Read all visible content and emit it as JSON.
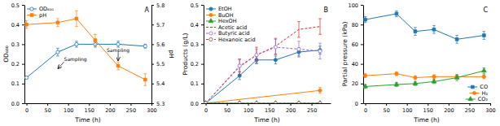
{
  "chart_data": [
    {
      "type": "line",
      "title": "A",
      "xlabel": "Time (h)",
      "ylabel": "OD₆₀₀",
      "y2label": "pH",
      "xlim": [
        -5,
        300
      ],
      "xticks": [
        0,
        50,
        100,
        150,
        200,
        250,
        300
      ],
      "ylim": [
        0.0,
        0.5
      ],
      "yticks": [
        {
          "value": 0,
          "label": "0.0"
        },
        0.1,
        0.2,
        0.3,
        0.4,
        0.5
      ],
      "y2lim": [
        5.3,
        5.8
      ],
      "y2ticks": [
        5.3,
        5.4,
        5.5,
        5.6,
        5.7,
        5.8
      ],
      "legend": "upper-left",
      "series": [
        {
          "name": "OD₆₀₀",
          "marker": "circle-open",
          "line_style": "solid",
          "x": [
            0,
            75,
            120,
            165,
            220,
            285
          ],
          "values": [
            0.13,
            0.26,
            0.3,
            0.3,
            0.3,
            0.29
          ],
          "errors": [
            0.005,
            0.02,
            0.015,
            0.015,
            0.015,
            0.01
          ]
        },
        {
          "name": "pH",
          "axis": "y2",
          "marker": "square",
          "line_style": "solid",
          "x": [
            0,
            75,
            120,
            165,
            220,
            285
          ],
          "values": [
            5.7,
            5.71,
            5.73,
            5.62,
            5.49,
            5.42
          ],
          "errors": [
            0.02,
            0.02,
            0.04,
            0.03,
            0.02,
            0.03
          ]
        }
      ],
      "annotations": [
        {
          "text": "Sampling",
          "x": 75,
          "y": 0.175,
          "text_x": 90,
          "text_y": 0.21
        },
        {
          "text": "Sampling",
          "x": 220,
          "y": 0.215,
          "text_x": 220,
          "text_y": 0.255
        }
      ]
    },
    {
      "type": "line",
      "title": "B",
      "xlabel": "Time (h)",
      "ylabel": "Products (g/L)",
      "xlim": [
        -5,
        295
      ],
      "xticks": [
        0,
        50,
        100,
        150,
        200,
        250
      ],
      "ylim": [
        0.0,
        0.5
      ],
      "yticks": [
        {
          "value": 0,
          "label": "0.0"
        },
        0.1,
        0.2,
        0.3,
        0.4,
        0.5
      ],
      "legend": "upper-left",
      "series": [
        {
          "name": "EtOH",
          "marker": "circle",
          "line_style": "solid",
          "x": [
            0,
            80,
            120,
            165,
            220,
            270
          ],
          "values": [
            0.0,
            0.14,
            0.22,
            0.22,
            0.26,
            0.27
          ],
          "errors": [
            0.0,
            0.02,
            0.02,
            0.02,
            0.02,
            0.02
          ]
        },
        {
          "name": "BuOH",
          "marker": "circle",
          "line_style": "solid",
          "x": [
            0,
            270
          ],
          "values": [
            0.0,
            0.065
          ],
          "errors": [
            0.0,
            0.015
          ]
        },
        {
          "name": "HexOH",
          "marker": "triangle",
          "line_style": "solid",
          "x": [
            0,
            80,
            120,
            165,
            220,
            270
          ],
          "values": [
            0.0,
            0.0,
            0.0,
            0.0,
            0.0,
            0.0
          ],
          "errors": [
            0.0,
            0.0,
            0.0,
            0.0,
            0.0,
            0.0
          ]
        },
        {
          "name": "Acetic acid",
          "marker": "none",
          "line_style": "dashed",
          "x": [
            0,
            80,
            120,
            165,
            220,
            270
          ],
          "values": [
            0.0,
            0.185,
            0.245,
            0.29,
            0.375,
            0.39
          ],
          "errors": [
            0.0,
            0.04,
            0.04,
            0.04,
            0.04,
            0.04
          ]
        },
        {
          "name": "Butyric acid",
          "marker": "circle-open",
          "line_style": "dashed",
          "x": [
            0,
            80,
            120,
            165,
            220,
            270
          ],
          "values": [
            0.0,
            0.19,
            0.245,
            0.285,
            0.275,
            0.265
          ],
          "errors": [
            0.0,
            0.03,
            0.03,
            0.04,
            0.04,
            0.04
          ]
        },
        {
          "name": "Hexanoic acid",
          "marker": "circle-open",
          "line_style": "dashed",
          "x": [
            0,
            80,
            120,
            165,
            220,
            270
          ],
          "values": [
            0.0,
            0.0,
            0.0,
            0.0,
            0.0,
            0.0
          ],
          "errors": [
            0.0,
            0.0,
            0.0,
            0.0,
            0.0,
            0.0
          ]
        }
      ]
    },
    {
      "type": "line",
      "title": "C",
      "xlabel": "Time (h)",
      "ylabel": "Partial pressure (kPa)",
      "xlim": [
        -5,
        300
      ],
      "xticks": [
        0,
        50,
        100,
        150,
        200,
        250,
        300
      ],
      "ylim": [
        0,
        100
      ],
      "yticks": [
        0,
        20,
        40,
        60,
        80,
        100
      ],
      "legend": "lower-right",
      "series": [
        {
          "name": "CO",
          "marker": "square",
          "line_style": "solid",
          "x": [
            0,
            75,
            120,
            165,
            220,
            285
          ],
          "values": [
            85,
            91,
            73,
            75,
            65,
            69
          ],
          "errors": [
            3,
            3,
            4,
            4,
            4,
            4
          ]
        },
        {
          "name": "H₂",
          "marker": "circle",
          "line_style": "solid",
          "x": [
            0,
            75,
            120,
            165,
            220,
            285
          ],
          "values": [
            28,
            30,
            26,
            27,
            27,
            27
          ],
          "errors": [
            2,
            2,
            2,
            2,
            2,
            2
          ]
        },
        {
          "name": "CO₂",
          "marker": "triangle",
          "line_style": "solid",
          "x": [
            0,
            75,
            120,
            165,
            220,
            285
          ],
          "values": [
            17,
            19,
            20,
            22,
            26,
            33
          ],
          "errors": [
            2,
            2,
            2,
            2,
            3,
            3
          ]
        }
      ]
    }
  ]
}
